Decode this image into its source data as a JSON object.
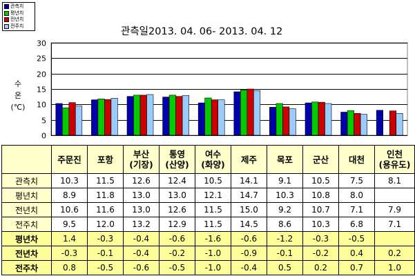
{
  "chart_data": {
    "type": "bar",
    "title": "관측일2013. 04. 06-  2013. 04. 12",
    "ylabel": "수온(℃)",
    "ylabel_lines": [
      "수",
      "온",
      "(℃)"
    ],
    "ylim": [
      0,
      30
    ],
    "yticks": [
      0,
      5,
      10,
      15,
      20,
      25,
      30
    ],
    "grid": true,
    "legend_position": "top-left",
    "categories": [
      "주문진",
      "포항",
      "부산\n(기장)",
      "통영\n(산양)",
      "여수\n(화양)",
      "제주",
      "목포",
      "군산",
      "대천",
      "인천\n(용유도)"
    ],
    "series": [
      {
        "name": "관측치",
        "color": "#0000aa",
        "values": [
          10.3,
          11.5,
          12.6,
          12.4,
          10.5,
          14.1,
          9.1,
          10.5,
          7.5,
          8.1
        ]
      },
      {
        "name": "평년치",
        "color": "#00cc00",
        "values": [
          8.9,
          11.8,
          13.0,
          13.0,
          12.1,
          14.7,
          10.3,
          10.8,
          8.0,
          null
        ]
      },
      {
        "name": "전년치",
        "color": "#cc0000",
        "values": [
          10.6,
          11.6,
          13.0,
          12.6,
          11.5,
          15.0,
          9.2,
          10.7,
          7.1,
          7.9
        ]
      },
      {
        "name": "전주치",
        "color": "#99ccff",
        "values": [
          9.5,
          12.0,
          13.2,
          12.9,
          11.5,
          14.5,
          8.6,
          10.3,
          6.8,
          7.1
        ]
      }
    ]
  },
  "table": {
    "columns": [
      "주문진",
      "포항",
      "부산\n(기장)",
      "통영\n(산양)",
      "여수\n(화양)",
      "제주",
      "목포",
      "군산",
      "대천",
      "인천\n(용유도)"
    ],
    "rows": [
      {
        "label": "관측치",
        "kind": "plain",
        "values": [
          "10.3",
          "11.5",
          "12.6",
          "12.4",
          "10.5",
          "14.1",
          "9.1",
          "10.5",
          "7.5",
          "8.1"
        ]
      },
      {
        "label": "평년치",
        "kind": "plain",
        "values": [
          "8.9",
          "11.8",
          "13.0",
          "13.0",
          "12.1",
          "14.7",
          "10.3",
          "10.8",
          "8.0",
          ""
        ]
      },
      {
        "label": "전년치",
        "kind": "plain",
        "values": [
          "10.6",
          "11.6",
          "13.0",
          "12.6",
          "11.5",
          "15.0",
          "9.2",
          "10.7",
          "7.1",
          "7.9"
        ]
      },
      {
        "label": "전주치",
        "kind": "plain",
        "values": [
          "9.5",
          "12.0",
          "13.2",
          "12.9",
          "11.5",
          "14.5",
          "8.6",
          "10.3",
          "6.8",
          "7.1"
        ]
      },
      {
        "label": "평년차",
        "kind": "diff",
        "values": [
          "1.4",
          "-0.3",
          "-0.4",
          "-0.6",
          "-1.6",
          "-0.6",
          "-1.2",
          "-0.3",
          "-0.5",
          ""
        ]
      },
      {
        "label": "전년차",
        "kind": "diff",
        "values": [
          "-0.3",
          "-0.1",
          "-0.4",
          "-0.2",
          "-1.0",
          "-0.9",
          "-0.1",
          "-0.2",
          "0.4",
          "0.2"
        ]
      },
      {
        "label": "전주차",
        "kind": "diff",
        "values": [
          "0.8",
          "-0.5",
          "-0.6",
          "-0.5",
          "-1.0",
          "-0.4",
          "0.5",
          "0.2",
          "0.7",
          "1.0"
        ]
      }
    ]
  }
}
